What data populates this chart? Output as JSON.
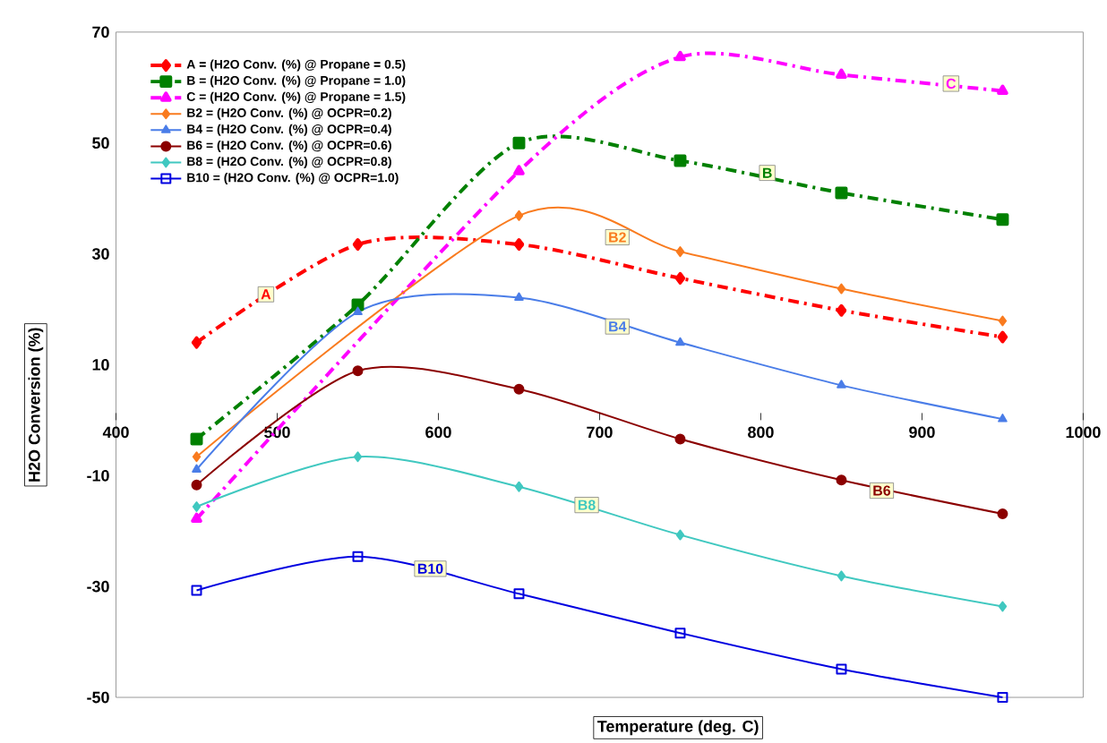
{
  "chart_data": {
    "type": "line",
    "xlabel": "Temperature (deg. C)",
    "ylabel": "H2O Conversion (%)",
    "x": [
      450,
      550,
      650,
      750,
      850,
      950
    ],
    "xlim": [
      400,
      1000
    ],
    "xticks": [
      400,
      500,
      600,
      700,
      800,
      900,
      1000
    ],
    "ylim": [
      -50,
      70
    ],
    "yticks": [
      -50,
      -30,
      -10,
      10,
      30,
      50,
      70
    ],
    "legend": "top left",
    "grid": false,
    "series": [
      {
        "name": "A = (H2O Conv. (%) @ Propane = 0.5)",
        "color": "#ff0000",
        "marker": "diamond",
        "line_style": "dashed",
        "values": [
          14,
          31.7,
          31.7,
          25.6,
          19.8,
          15
        ]
      },
      {
        "name": "B = (H2O Conv. (%) @ Propane = 1.0)",
        "color": "#008000",
        "marker": "square",
        "line_style": "dashed",
        "values": [
          -3.4,
          20.8,
          50,
          46.8,
          41,
          36.2
        ]
      },
      {
        "name": "C = (H2O Conv. (%) @ Propane = 1.5)",
        "color": "#ff00ff",
        "marker": "triangle",
        "line_style": "dashed",
        "values": [
          -17.8,
          null,
          44.9,
          65.5,
          62.3,
          59.4
        ]
      },
      {
        "name": "B2 = (H2O Conv. (%) @ OCPR=0.2)",
        "color": "#f97b1f",
        "marker": "diamond",
        "line_style": "solid",
        "values": [
          -6.6,
          null,
          36.9,
          30.4,
          23.7,
          17.9
        ]
      },
      {
        "name": "B4 = (H2O Conv. (%) @ OCPR=0.4)",
        "color": "#4a7de8",
        "marker": "triangle",
        "line_style": "solid",
        "values": [
          -8.9,
          19.5,
          22.1,
          14,
          6.3,
          0.2
        ]
      },
      {
        "name": "B6 = (H2O Conv. (%) @ OCPR=0.6)",
        "color": "#8b0000",
        "marker": "circle",
        "line_style": "solid",
        "values": [
          -11.7,
          8.9,
          5.6,
          -3.4,
          -10.8,
          -16.9
        ]
      },
      {
        "name": "B8 = (H2O Conv. (%) @ OCPR=0.8)",
        "color": "#40c8c0",
        "marker": "diamond",
        "line_style": "solid",
        "values": [
          -15.6,
          -6.6,
          -12,
          -20.7,
          -28.1,
          -33.6
        ]
      },
      {
        "name": "B10 = (H2O Conv. (%) @ OCPR=1.0)",
        "color": "#0000e0",
        "marker": "square",
        "line_style": "solid",
        "values": [
          -30.7,
          -24.6,
          -31.3,
          -38.4,
          -44.9,
          -50
        ]
      }
    ],
    "annotations": [
      {
        "text": "A",
        "x": 493,
        "y": 22.7
      },
      {
        "text": "B",
        "x": 804,
        "y": 44.6
      },
      {
        "text": "C",
        "x": 918,
        "y": 60.7
      },
      {
        "text": "B2",
        "x": 711,
        "y": 33
      },
      {
        "text": "B4",
        "x": 711,
        "y": 16.9
      },
      {
        "text": "B6",
        "x": 875,
        "y": -12.7
      },
      {
        "text": "B8",
        "x": 692,
        "y": -15.3
      },
      {
        "text": "B10",
        "x": 595,
        "y": -26.8
      }
    ]
  }
}
